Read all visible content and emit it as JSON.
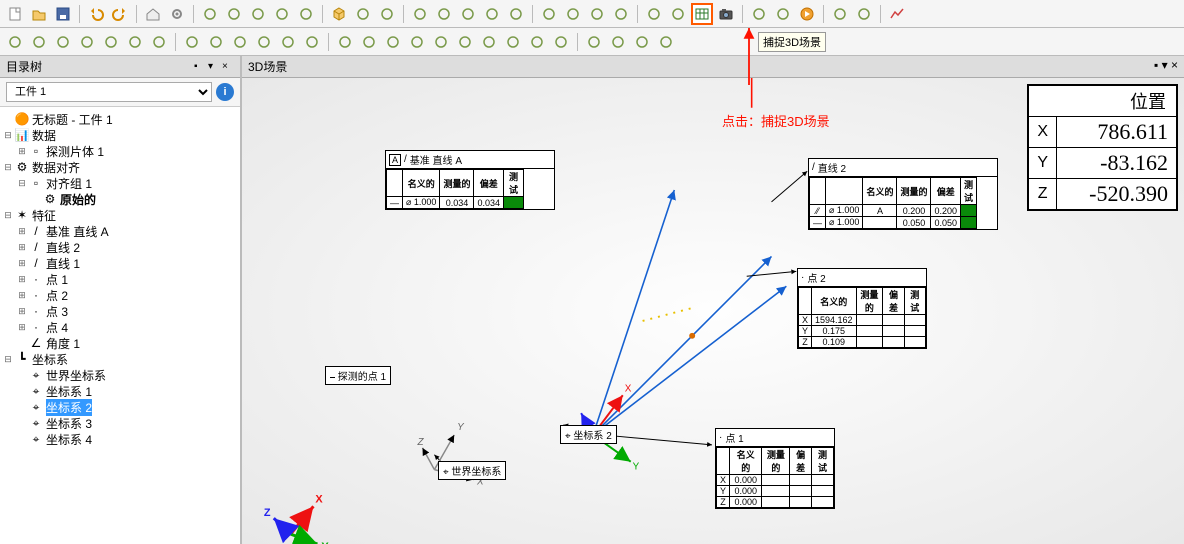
{
  "toolbar1_icons": [
    "file-new",
    "file-open",
    "file-save",
    "|",
    "undo",
    "redo",
    "|",
    "home",
    "settings",
    "|",
    "probe",
    "spark",
    "binary",
    "sun",
    "pin",
    "|",
    "cube",
    "ops1",
    "ops2",
    "|",
    "wave",
    "scissors",
    "wand",
    "zoom",
    "grid",
    "|",
    "sync",
    "find",
    "ruler",
    "compass",
    "|",
    "clipboard",
    "camera-doc",
    "table",
    "camera",
    "|",
    "filter",
    "dot",
    "play-circle",
    "|",
    "chart",
    "list",
    "|",
    "line-chart"
  ],
  "toolbar1_highlight_index": 33,
  "toolbar2_icons": [
    "t1",
    "t2",
    "t3",
    "t4",
    "t5",
    "t6",
    "t7",
    "|",
    "s1",
    "s2",
    "s3",
    "s4",
    "s5",
    "s6",
    "|",
    "g1",
    "g2",
    "g3",
    "g4",
    "g5",
    "g6",
    "g7",
    "g8",
    "g9",
    "g10",
    "|",
    "m1",
    "m2",
    "m3",
    "m4"
  ],
  "tooltip_text": "捕捉3D场景",
  "anno_click": "点击：捕捉3D场景",
  "left_panel_title": "目录树",
  "scene_title": "3D场景",
  "combo_value": "工件 1",
  "tree": [
    {
      "ind": 0,
      "toggle": "",
      "icon": "🟠",
      "label": "无标题 - 工件 1",
      "bold": false
    },
    {
      "ind": 0,
      "toggle": "⊟",
      "icon": "📊",
      "label": "数据"
    },
    {
      "ind": 1,
      "toggle": "⊞",
      "icon": "▫",
      "label": "探测片体 1"
    },
    {
      "ind": 0,
      "toggle": "⊟",
      "icon": "⚙",
      "label": "数据对齐"
    },
    {
      "ind": 1,
      "toggle": "⊟",
      "icon": "▫",
      "label": "对齐组 1"
    },
    {
      "ind": 2,
      "toggle": "",
      "icon": "⚙",
      "label": "原始的",
      "bold": true
    },
    {
      "ind": 0,
      "toggle": "⊟",
      "icon": "✶",
      "label": "特征"
    },
    {
      "ind": 1,
      "toggle": "⊞",
      "icon": "/",
      "label": "基准 直线 A"
    },
    {
      "ind": 1,
      "toggle": "⊞",
      "icon": "/",
      "label": "直线 2"
    },
    {
      "ind": 1,
      "toggle": "⊞",
      "icon": "/",
      "label": "直线 1"
    },
    {
      "ind": 1,
      "toggle": "⊞",
      "icon": "·",
      "label": "点 1"
    },
    {
      "ind": 1,
      "toggle": "⊞",
      "icon": "·",
      "label": "点 2"
    },
    {
      "ind": 1,
      "toggle": "⊞",
      "icon": "·",
      "label": "点 3"
    },
    {
      "ind": 1,
      "toggle": "⊞",
      "icon": "·",
      "label": "点 4"
    },
    {
      "ind": 1,
      "toggle": "",
      "icon": "∠",
      "label": "角度 1"
    },
    {
      "ind": 0,
      "toggle": "⊟",
      "icon": "┗",
      "label": "坐标系"
    },
    {
      "ind": 1,
      "toggle": "",
      "icon": "⌖",
      "label": "世界坐标系"
    },
    {
      "ind": 1,
      "toggle": "",
      "icon": "⌖",
      "label": "坐标系 1"
    },
    {
      "ind": 1,
      "toggle": "",
      "icon": "⌖",
      "label": "坐标系 2",
      "selected": true
    },
    {
      "ind": 1,
      "toggle": "",
      "icon": "⌖",
      "label": "坐标系 3"
    },
    {
      "ind": 1,
      "toggle": "",
      "icon": "⌖",
      "label": "坐标系 4"
    }
  ],
  "position": {
    "title": "位置",
    "x_label": "X",
    "y_label": "Y",
    "z_label": "Z",
    "x": "786.611",
    "y": "-83.162",
    "z": "-520.390"
  },
  "callouts": {
    "datum_line_a": {
      "title": "基准 直线 A",
      "head": [
        "",
        "名义的",
        "测量的",
        "偏差",
        "测试"
      ],
      "row": [
        "⌀ 1.000",
        "",
        "0.034",
        "0.034",
        ""
      ]
    },
    "line2": {
      "title": "直线 2",
      "head": [
        "",
        "",
        "名义的",
        "测量的",
        "偏差",
        "测试"
      ],
      "rows": [
        [
          "⁄⁄",
          "⌀ 1.000",
          "A",
          "",
          "0.200",
          "0.200",
          ""
        ],
        [
          "—",
          "⌀ 1.000",
          "",
          "",
          "0.050",
          "0.050",
          ""
        ]
      ]
    },
    "point2": {
      "title": "点 2",
      "head": [
        "",
        "名义的",
        "测量的",
        "偏差",
        "测试"
      ],
      "rows": [
        [
          "X",
          "1594.162",
          "",
          "",
          ""
        ],
        [
          "Y",
          "0.175",
          "",
          "",
          ""
        ],
        [
          "Z",
          "0.109",
          "",
          "",
          ""
        ]
      ]
    },
    "point1": {
      "title": "点 1",
      "head": [
        "",
        "名义的",
        "测量的",
        "偏差",
        "测试"
      ],
      "rows": [
        [
          "X",
          "0.000",
          "",
          "",
          ""
        ],
        [
          "Y",
          "0.000",
          "",
          "",
          ""
        ],
        [
          "Z",
          "0.000",
          "",
          "",
          ""
        ]
      ]
    },
    "probed_point1": {
      "title": "探测的点 1"
    },
    "world_cs": {
      "title": "世界坐标系"
    },
    "cs2": {
      "title": "坐标系 2"
    }
  },
  "colors": {
    "accent_blue": "#1560d0",
    "axis_x": "#e11",
    "axis_y": "#0a0",
    "axis_z": "#22e",
    "highlight": "#ff5a00"
  },
  "axes": {
    "x": "X",
    "y": "Y",
    "z": "Z"
  }
}
